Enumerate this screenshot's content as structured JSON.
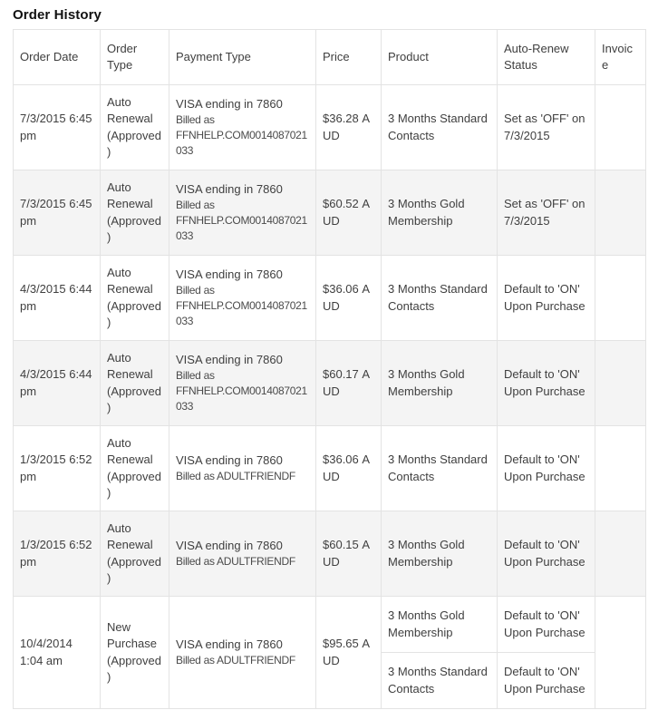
{
  "page_title": "Order History",
  "table": {
    "columns": [
      "Order Date",
      "Order Type",
      "Payment Type",
      "Price",
      "Product",
      "Auto-Renew Status",
      "Invoice"
    ],
    "rows": [
      {
        "order_date": "7/3/2015 6:45 pm",
        "order_type": "Auto Renewal (Approved)",
        "payment_line1": "VISA ending in 7860",
        "payment_line2": "Billed as FFNHELP.COM0014087021033",
        "price": "$36.28 AUD",
        "products": [
          {
            "product": "3 Months Standard Contacts",
            "auto_renew_status": "Set as 'OFF' on 7/3/2015"
          }
        ],
        "invoice": ""
      },
      {
        "order_date": "7/3/2015 6:45 pm",
        "order_type": "Auto Renewal (Approved)",
        "payment_line1": "VISA ending in 7860",
        "payment_line2": "Billed as FFNHELP.COM0014087021033",
        "price": "$60.52 AUD",
        "products": [
          {
            "product": "3 Months Gold Membership",
            "auto_renew_status": "Set as 'OFF' on 7/3/2015"
          }
        ],
        "invoice": ""
      },
      {
        "order_date": "4/3/2015 6:44 pm",
        "order_type": "Auto Renewal (Approved)",
        "payment_line1": "VISA ending in 7860",
        "payment_line2": "Billed as FFNHELP.COM0014087021033",
        "price": "$36.06 AUD",
        "products": [
          {
            "product": "3 Months Standard Contacts",
            "auto_renew_status": "Default to 'ON' Upon Purchase"
          }
        ],
        "invoice": ""
      },
      {
        "order_date": "4/3/2015 6:44 pm",
        "order_type": "Auto Renewal (Approved)",
        "payment_line1": "VISA ending in 7860",
        "payment_line2": "Billed as FFNHELP.COM0014087021033",
        "price": "$60.17 AUD",
        "products": [
          {
            "product": "3 Months Gold Membership",
            "auto_renew_status": "Default to 'ON' Upon Purchase"
          }
        ],
        "invoice": ""
      },
      {
        "order_date": "1/3/2015 6:52 pm",
        "order_type": "Auto Renewal (Approved)",
        "payment_line1": "VISA ending in 7860",
        "payment_line2": "Billed as ADULTFRIENDF",
        "price": "$36.06 AUD",
        "products": [
          {
            "product": "3 Months Standard Contacts",
            "auto_renew_status": "Default to 'ON' Upon Purchase"
          }
        ],
        "invoice": ""
      },
      {
        "order_date": "1/3/2015 6:52 pm",
        "order_type": "Auto Renewal (Approved)",
        "payment_line1": "VISA ending in 7860",
        "payment_line2": "Billed as ADULTFRIENDF",
        "price": "$60.15 AUD",
        "products": [
          {
            "product": "3 Months Gold Membership",
            "auto_renew_status": "Default to 'ON' Upon Purchase"
          }
        ],
        "invoice": ""
      },
      {
        "order_date": "10/4/2014 1:04 am",
        "order_type": "New Purchase (Approved)",
        "payment_line1": "VISA ending in 7860",
        "payment_line2": "Billed as ADULTFRIENDF",
        "price": "$95.65 AUD",
        "products": [
          {
            "product": "3 Months Gold Membership",
            "auto_renew_status": "Default to 'ON' Upon Purchase"
          },
          {
            "product": "3 Months Standard Contacts",
            "auto_renew_status": "Default to 'ON' Upon Purchase"
          }
        ],
        "invoice": ""
      }
    ]
  }
}
